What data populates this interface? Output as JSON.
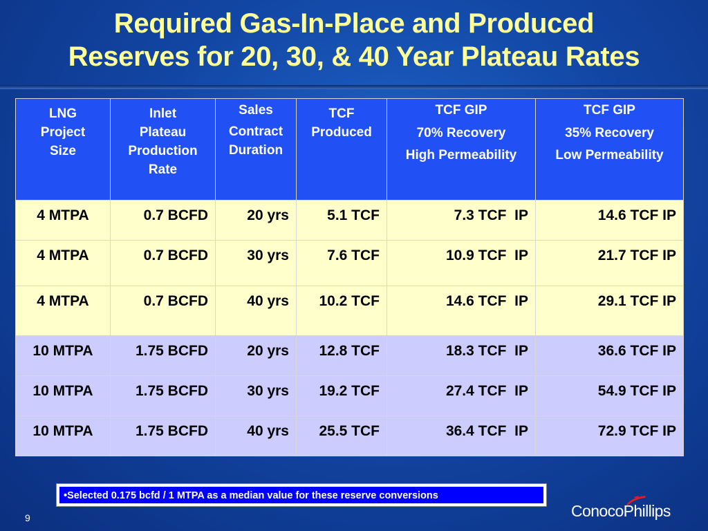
{
  "title": {
    "line1": "Required Gas-In-Place and Produced",
    "line2": "Reserves for 20, 30, & 40 Year Plateau Rates"
  },
  "table": {
    "headers": [
      [
        "LNG",
        "Project",
        "Size"
      ],
      [
        "Inlet",
        "Plateau",
        "Production",
        "Rate"
      ],
      [
        "Sales",
        "Contract",
        "Duration"
      ],
      [
        "TCF",
        "Produced"
      ],
      [
        "TCF GIP",
        "70% Recovery",
        "High Permeability"
      ],
      [
        "TCF GIP",
        "35% Recovery",
        "Low Permeability"
      ]
    ],
    "rows": [
      [
        "4 MTPA",
        "0.7 BCFD",
        "20 yrs",
        "5.1 TCF",
        "7.3 TCF  IP",
        "14.6 TCF IP"
      ],
      [
        "4 MTPA",
        "0.7 BCFD",
        "30 yrs",
        "7.6 TCF",
        "10.9 TCF  IP",
        "21.7 TCF IP"
      ],
      [
        "4 MTPA",
        "0.7 BCFD",
        "40 yrs",
        "10.2 TCF",
        "14.6 TCF  IP",
        "29.1 TCF IP"
      ],
      [
        "10 MTPA",
        "1.75 BCFD",
        "20 yrs",
        "12.8 TCF",
        "18.3 TCF  IP",
        "36.6 TCF IP"
      ],
      [
        "10 MTPA",
        "1.75 BCFD",
        "30 yrs",
        "19.2 TCF",
        "27.4 TCF  IP",
        "54.9 TCF IP"
      ],
      [
        "10 MTPA",
        "1.75 BCFD",
        "40 yrs",
        "25.5 TCF",
        "36.4 TCF  IP",
        "72.9 TCF IP"
      ]
    ]
  },
  "note": "•Selected 0.175 bcfd / 1 MTPA as a median value for these reserve conversions",
  "page_number": "9",
  "logo": {
    "text": "ConocoPhillips",
    "icon": "conocophillips-logo-icon",
    "color": "#e31b23"
  },
  "colors": {
    "background": "#1246a4",
    "title": "#ffff99",
    "header_bg": "#2150f5",
    "group_a_bg": "#ffffcc",
    "group_b_bg": "#ccccff",
    "note_bg": "#0000ff"
  }
}
